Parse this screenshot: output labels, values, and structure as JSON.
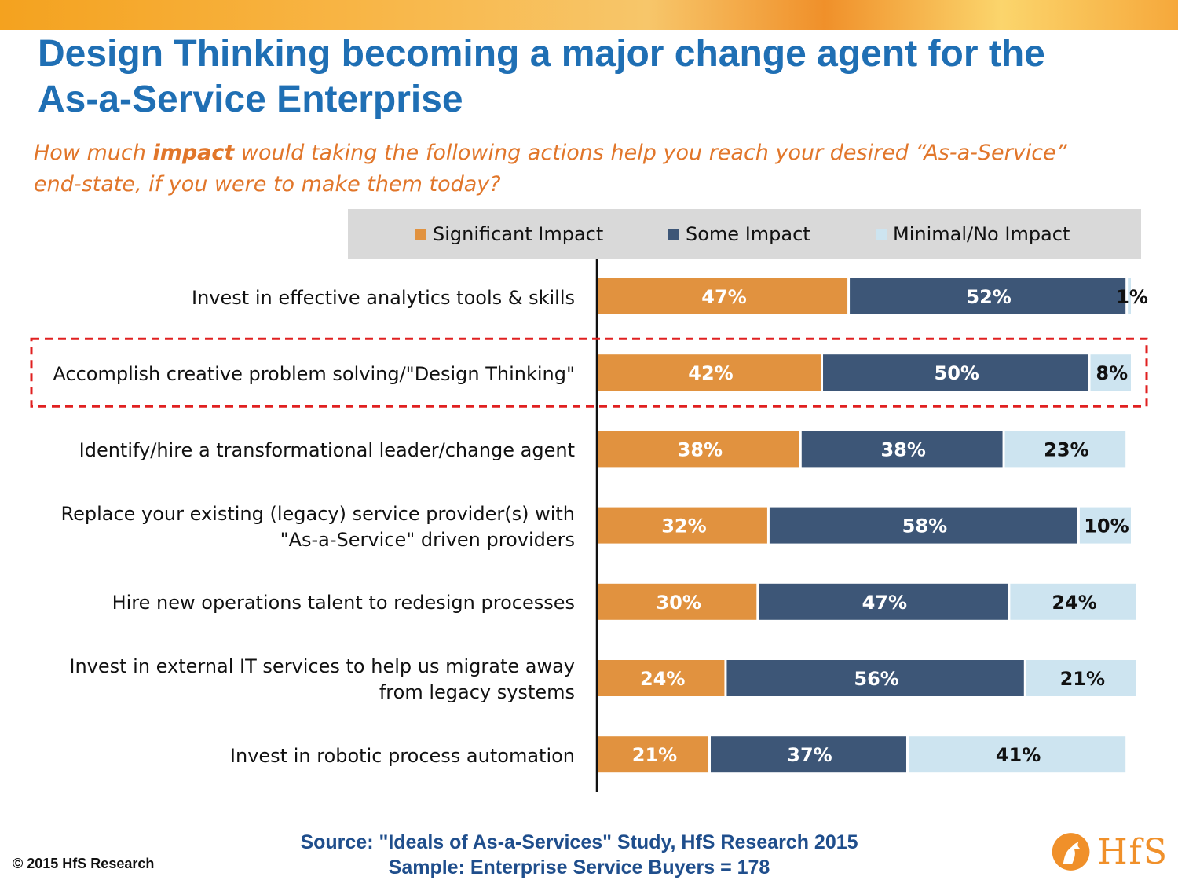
{
  "header": {
    "title_line1": "Design Thinking becoming a major change agent for the",
    "title_line2": "As-a-Service Enterprise",
    "subtitle_pre": "How much ",
    "subtitle_bold1": "impact",
    "subtitle_mid": " would taking the following actions help you reach your desired “As-a-Service”",
    "subtitle_line2_pre": "end-state, ",
    "subtitle_line2_italic": "if you were to make them today?"
  },
  "colors": {
    "significant": "#e1923f",
    "some": "#3d5677",
    "minimal": "#cde4f0",
    "highlight": "#e02020"
  },
  "chart_data": {
    "type": "bar",
    "orientation": "horizontal",
    "stacked": true,
    "categories": [
      "Invest in effective analytics tools & skills",
      "Accomplish creative problem solving/\"Design Thinking\"",
      "Identify/hire a transformational leader/change agent",
      "Replace your existing (legacy) service provider(s) with \"As-a-Service\" driven providers",
      "Hire new operations talent to redesign processes",
      "Invest in external IT services to help us migrate away from legacy systems",
      "Invest in robotic process automation"
    ],
    "category_lines": [
      [
        "Invest in effective analytics tools & skills"
      ],
      [
        "Accomplish creative problem solving/\"Design Thinking\""
      ],
      [
        "Identify/hire a transformational leader/change agent"
      ],
      [
        "Replace your existing (legacy) service provider(s) with",
        "\"As-a-Service\" driven providers"
      ],
      [
        "Hire new operations talent to redesign processes"
      ],
      [
        "Invest in external IT services to help us migrate away",
        "from legacy systems"
      ],
      [
        "Invest in robotic process automation"
      ]
    ],
    "series": [
      {
        "name": "Significant Impact",
        "values": [
          47,
          42,
          38,
          32,
          30,
          24,
          21
        ]
      },
      {
        "name": "Some Impact",
        "values": [
          52,
          50,
          38,
          58,
          47,
          56,
          37
        ]
      },
      {
        "name": "Minimal/No Impact",
        "values": [
          1,
          8,
          23,
          10,
          24,
          21,
          41
        ]
      }
    ],
    "value_suffix": "%",
    "xlim": [
      0,
      100
    ],
    "legend_position": "top",
    "highlighted_category_index": 1
  },
  "footer": {
    "copyright": "© 2015 HfS Research",
    "source_line1": "Source: \"Ideals of As-a-Services\" Study, HfS Research 2015",
    "source_line2": "Sample: Enterprise Service Buyers = 178",
    "logo_text": "HfS"
  }
}
